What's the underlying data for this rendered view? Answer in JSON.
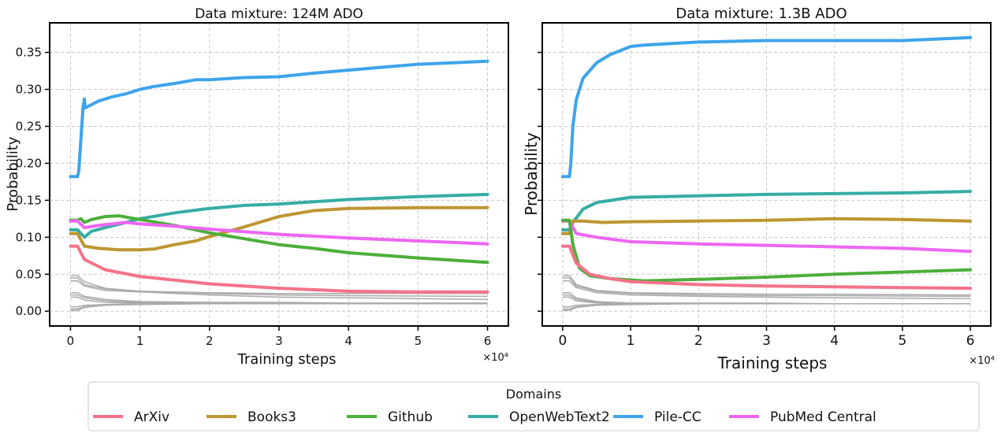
{
  "colors": {
    "ArXiv": "#f5728a",
    "Books3": "#be9632",
    "Github": "#4caf3a",
    "OpenWebText2": "#36ada4",
    "Pile-CC": "#3ea4ec",
    "PubMed Central": "#ed66f2",
    "other": "#aaaaaa"
  },
  "legend": {
    "title": "Domains",
    "placement": "bottom-center",
    "entries": [
      "ArXiv",
      "Books3",
      "Github",
      "OpenWebText2",
      "Pile-CC",
      "PubMed Central"
    ]
  },
  "chart_data": [
    {
      "type": "line",
      "title": "Data mixture: 124M ADO",
      "xlabel": "Training steps",
      "ylabel": "Probability",
      "x_offset_label": "×10⁴",
      "xlim": [
        -0.3,
        6.3
      ],
      "ylim": [
        -0.02,
        0.39
      ],
      "xticks": [
        "0",
        "1",
        "2",
        "3",
        "4",
        "5",
        "6"
      ],
      "yticks": [
        "0.00",
        "0.05",
        "0.10",
        "0.15",
        "0.20",
        "0.25",
        "0.30",
        "0.35"
      ],
      "grid": true,
      "series": [
        {
          "name": "Pile-CC",
          "x": [
            0,
            0.1,
            0.12,
            0.18,
            0.2,
            0.21,
            0.4,
            0.6,
            0.8,
            1,
            1.2,
            1.5,
            1.8,
            2,
            2.5,
            3,
            3.3,
            3.5,
            4,
            4.5,
            5,
            5.5,
            6
          ],
          "y": [
            0.182,
            0.182,
            0.19,
            0.275,
            0.287,
            0.275,
            0.284,
            0.29,
            0.294,
            0.3,
            0.304,
            0.308,
            0.313,
            0.313,
            0.316,
            0.317,
            0.32,
            0.322,
            0.326,
            0.33,
            0.334,
            0.336,
            0.338
          ]
        },
        {
          "name": "OpenWebText2",
          "x": [
            0,
            0.1,
            0.2,
            0.3,
            0.5,
            0.8,
            1,
            1.5,
            2,
            2.5,
            3,
            3.5,
            4,
            5,
            6
          ],
          "y": [
            0.11,
            0.11,
            0.1,
            0.108,
            0.113,
            0.12,
            0.125,
            0.133,
            0.139,
            0.143,
            0.145,
            0.148,
            0.151,
            0.155,
            0.158
          ]
        },
        {
          "name": "Books3",
          "x": [
            0,
            0.1,
            0.2,
            0.4,
            0.7,
            1,
            1.2,
            1.5,
            1.8,
            2,
            2.5,
            3,
            3.5,
            4,
            5,
            6
          ],
          "y": [
            0.105,
            0.105,
            0.088,
            0.085,
            0.083,
            0.083,
            0.084,
            0.09,
            0.095,
            0.101,
            0.114,
            0.128,
            0.136,
            0.139,
            0.14,
            0.14
          ]
        },
        {
          "name": "Github",
          "x": [
            0,
            0.1,
            0.15,
            0.2,
            0.3,
            0.5,
            0.7,
            1,
            1.5,
            2,
            2.5,
            3,
            3.5,
            4,
            5,
            6
          ],
          "y": [
            0.123,
            0.123,
            0.125,
            0.12,
            0.124,
            0.128,
            0.129,
            0.124,
            0.116,
            0.106,
            0.098,
            0.09,
            0.085,
            0.079,
            0.072,
            0.066
          ]
        },
        {
          "name": "PubMed Central",
          "x": [
            0,
            0.1,
            0.2,
            0.4,
            0.8,
            1,
            1.5,
            2,
            3,
            4,
            5,
            6
          ],
          "y": [
            0.122,
            0.122,
            0.113,
            0.116,
            0.12,
            0.118,
            0.115,
            0.111,
            0.104,
            0.099,
            0.095,
            0.091
          ]
        },
        {
          "name": "ArXiv",
          "x": [
            0,
            0.1,
            0.2,
            0.5,
            1,
            1.5,
            2,
            3,
            4,
            5,
            6
          ],
          "y": [
            0.088,
            0.088,
            0.07,
            0.056,
            0.047,
            0.042,
            0.037,
            0.031,
            0.027,
            0.026,
            0.026
          ]
        }
      ],
      "other_series": [
        {
          "x": [
            0,
            0.1,
            0.2,
            0.5,
            1,
            2,
            3,
            4,
            6
          ],
          "y": [
            0.048,
            0.048,
            0.04,
            0.031,
            0.027,
            0.024,
            0.022,
            0.021,
            0.02
          ]
        },
        {
          "x": [
            0,
            0.1,
            0.2,
            0.5,
            1,
            2,
            3,
            4,
            6
          ],
          "y": [
            0.045,
            0.045,
            0.036,
            0.03,
            0.027,
            0.025,
            0.024,
            0.024,
            0.024
          ]
        },
        {
          "x": [
            0,
            0.1,
            0.2,
            0.5,
            1,
            2,
            3,
            4,
            6
          ],
          "y": [
            0.041,
            0.041,
            0.034,
            0.028,
            0.026,
            0.022,
            0.019,
            0.018,
            0.016
          ]
        },
        {
          "x": [
            0,
            0.1,
            0.2,
            0.5,
            1,
            2,
            3,
            4,
            6
          ],
          "y": [
            0.025,
            0.025,
            0.02,
            0.016,
            0.013,
            0.012,
            0.012,
            0.011,
            0.011
          ]
        },
        {
          "x": [
            0,
            0.1,
            0.2,
            0.5,
            1,
            2,
            3,
            4,
            6
          ],
          "y": [
            0.022,
            0.022,
            0.018,
            0.014,
            0.012,
            0.011,
            0.011,
            0.01,
            0.01
          ]
        },
        {
          "x": [
            0,
            0.1,
            0.2,
            0.5,
            1,
            2,
            3,
            4,
            6
          ],
          "y": [
            0.019,
            0.019,
            0.015,
            0.012,
            0.011,
            0.01,
            0.01,
            0.01,
            0.01
          ]
        },
        {
          "x": [
            0,
            0.1,
            0.2,
            0.5,
            1,
            2,
            3,
            4,
            6
          ],
          "y": [
            0.006,
            0.006,
            0.008,
            0.009,
            0.01,
            0.01,
            0.01,
            0.01,
            0.01
          ]
        },
        {
          "x": [
            0,
            0.1,
            0.2,
            0.5,
            1,
            2,
            3,
            4,
            6
          ],
          "y": [
            0.003,
            0.003,
            0.006,
            0.009,
            0.01,
            0.01,
            0.01,
            0.01,
            0.01
          ]
        },
        {
          "x": [
            0,
            0.1,
            0.2,
            0.5,
            1,
            2,
            3,
            4,
            6
          ],
          "y": [
            0.001,
            0.001,
            0.005,
            0.008,
            0.009,
            0.01,
            0.01,
            0.01,
            0.01
          ]
        }
      ]
    },
    {
      "type": "line",
      "title": "Data mixture: 1.3B ADO",
      "xlabel": "Training steps",
      "ylabel": "Probability",
      "x_offset_label": "×10⁴",
      "xlim": [
        -0.3,
        6.3
      ],
      "ylim": [
        -0.02,
        0.39
      ],
      "xticks": [
        "0",
        "1",
        "2",
        "3",
        "4",
        "5",
        "6"
      ],
      "grid": true,
      "series": [
        {
          "name": "Pile-CC",
          "x": [
            0,
            0.1,
            0.12,
            0.15,
            0.2,
            0.3,
            0.5,
            0.7,
            1,
            1.2,
            2,
            3,
            4,
            5,
            6
          ],
          "y": [
            0.182,
            0.182,
            0.2,
            0.25,
            0.286,
            0.315,
            0.336,
            0.347,
            0.358,
            0.36,
            0.364,
            0.366,
            0.366,
            0.366,
            0.37
          ]
        },
        {
          "name": "OpenWebText2",
          "x": [
            0,
            0.1,
            0.15,
            0.3,
            0.5,
            1,
            2,
            3,
            4,
            5,
            6
          ],
          "y": [
            0.11,
            0.11,
            0.12,
            0.138,
            0.147,
            0.154,
            0.156,
            0.158,
            0.159,
            0.16,
            0.162
          ]
        },
        {
          "name": "Books3",
          "x": [
            0,
            0.1,
            0.15,
            0.3,
            0.6,
            1,
            2,
            3,
            4,
            5,
            6
          ],
          "y": [
            0.105,
            0.105,
            0.122,
            0.122,
            0.12,
            0.121,
            0.122,
            0.123,
            0.125,
            0.124,
            0.122
          ]
        },
        {
          "name": "PubMed Central",
          "x": [
            0,
            0.1,
            0.2,
            0.5,
            1,
            2,
            3,
            4,
            5,
            6
          ],
          "y": [
            0.122,
            0.122,
            0.105,
            0.1,
            0.094,
            0.091,
            0.089,
            0.087,
            0.085,
            0.081
          ]
        },
        {
          "name": "Github",
          "x": [
            0,
            0.1,
            0.15,
            0.25,
            0.4,
            0.7,
            1.2,
            2,
            3,
            4,
            5,
            6
          ],
          "y": [
            0.123,
            0.123,
            0.09,
            0.058,
            0.048,
            0.044,
            0.041,
            0.043,
            0.046,
            0.05,
            0.053,
            0.056
          ]
        },
        {
          "name": "ArXiv",
          "x": [
            0,
            0.1,
            0.2,
            0.4,
            0.7,
            1,
            2,
            3,
            4,
            5,
            6
          ],
          "y": [
            0.088,
            0.088,
            0.065,
            0.05,
            0.044,
            0.04,
            0.036,
            0.034,
            0.033,
            0.032,
            0.031
          ]
        }
      ],
      "other_series": [
        {
          "x": [
            0,
            0.1,
            0.2,
            0.5,
            1,
            2,
            3,
            4,
            6
          ],
          "y": [
            0.048,
            0.048,
            0.036,
            0.028,
            0.025,
            0.024,
            0.023,
            0.023,
            0.022
          ]
        },
        {
          "x": [
            0,
            0.1,
            0.2,
            0.5,
            1,
            2,
            3,
            4,
            6
          ],
          "y": [
            0.045,
            0.045,
            0.034,
            0.027,
            0.024,
            0.022,
            0.021,
            0.021,
            0.02
          ]
        },
        {
          "x": [
            0,
            0.1,
            0.2,
            0.5,
            1,
            2,
            3,
            4,
            6
          ],
          "y": [
            0.041,
            0.041,
            0.032,
            0.025,
            0.022,
            0.02,
            0.019,
            0.018,
            0.017
          ]
        },
        {
          "x": [
            0,
            0.1,
            0.2,
            0.5,
            1,
            2,
            3,
            4,
            6
          ],
          "y": [
            0.025,
            0.025,
            0.018,
            0.013,
            0.011,
            0.011,
            0.011,
            0.01,
            0.01
          ]
        },
        {
          "x": [
            0,
            0.1,
            0.2,
            0.5,
            1,
            2,
            3,
            4,
            6
          ],
          "y": [
            0.022,
            0.022,
            0.016,
            0.012,
            0.011,
            0.01,
            0.01,
            0.01,
            0.01
          ]
        },
        {
          "x": [
            0,
            0.1,
            0.2,
            0.5,
            1,
            2,
            3,
            4,
            6
          ],
          "y": [
            0.019,
            0.019,
            0.014,
            0.011,
            0.01,
            0.01,
            0.01,
            0.01,
            0.01
          ]
        },
        {
          "x": [
            0,
            0.1,
            0.2,
            0.5,
            1,
            2,
            3,
            4,
            6
          ],
          "y": [
            0.006,
            0.006,
            0.008,
            0.009,
            0.01,
            0.01,
            0.01,
            0.01,
            0.01
          ]
        },
        {
          "x": [
            0,
            0.1,
            0.2,
            0.5,
            1,
            2,
            3,
            4,
            6
          ],
          "y": [
            0.003,
            0.003,
            0.006,
            0.009,
            0.01,
            0.01,
            0.01,
            0.01,
            0.01
          ]
        },
        {
          "x": [
            0,
            0.1,
            0.2,
            0.5,
            1,
            2,
            3,
            4,
            6
          ],
          "y": [
            0.001,
            0.001,
            0.005,
            0.008,
            0.009,
            0.01,
            0.01,
            0.01,
            0.01
          ]
        }
      ]
    }
  ]
}
